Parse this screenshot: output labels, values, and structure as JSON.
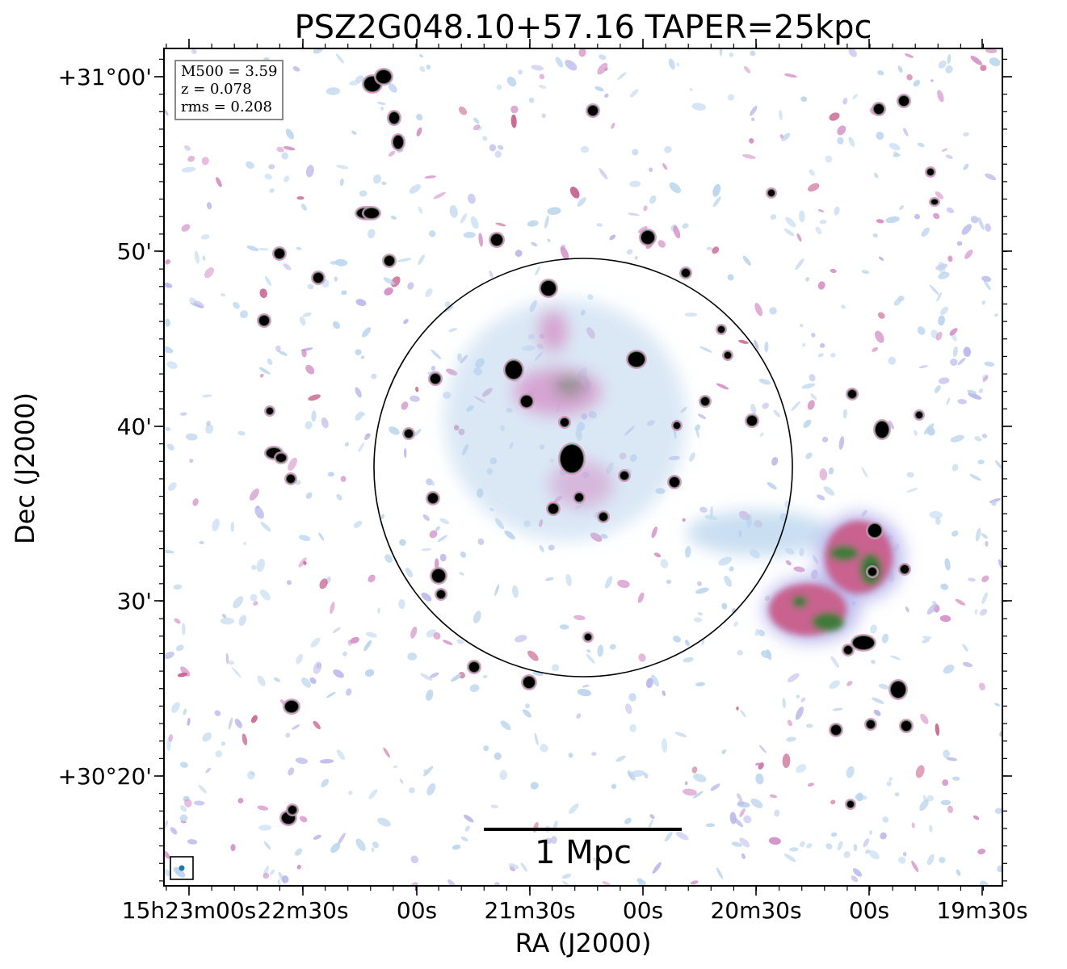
{
  "chart_data": {
    "type": "heatmap",
    "title": "PSZ2G048.10+57.16 TAPER=25kpc",
    "xlabel": "RA (J2000)",
    "ylabel": "Dec (J2000)",
    "x_tick_labels": [
      "15h23m00s",
      "22m30s",
      "00s",
      "21m30s",
      "00s",
      "20m30s",
      "00s",
      "19m30s"
    ],
    "y_tick_labels": [
      "+31°00'",
      "50'",
      "40'",
      "30'",
      "+30°20'"
    ],
    "annotations": {
      "info_lines": [
        "M500 = 3.59",
        "z = 0.078",
        "rms = 0.208"
      ],
      "scalebar_label": "1 Mpc"
    },
    "colormap": [
      "#ffffff",
      "#bcd6ee",
      "#b9b8ec",
      "#d48fc6",
      "#c9628f",
      "#3f7a3a",
      "#0b2a27",
      "#000000"
    ],
    "grid": false,
    "legend": "none",
    "features": {
      "r500_circle": true,
      "beam_marker_color": "#1f77b4"
    }
  }
}
